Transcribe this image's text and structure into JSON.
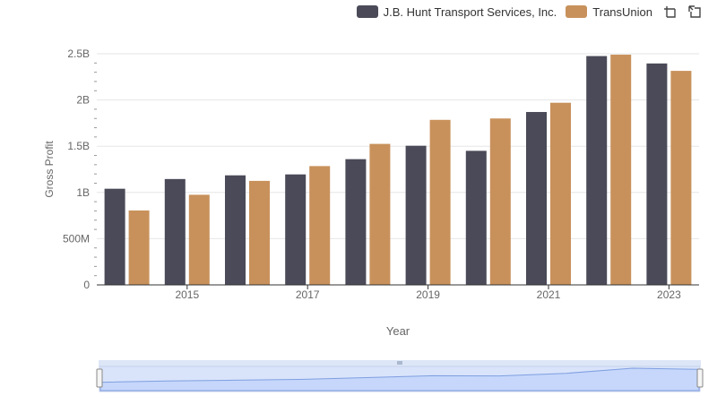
{
  "legend": [
    {
      "name": "J.B. Hunt Transport Services, Inc.",
      "color": "#4a4a58"
    },
    {
      "name": "TransUnion",
      "color": "#c8915b"
    }
  ],
  "toolbar": {
    "icons": [
      "zoom-select-icon",
      "zoom-reset-icon"
    ]
  },
  "chart_data": {
    "type": "bar",
    "x": [
      2014,
      2015,
      2016,
      2017,
      2018,
      2019,
      2020,
      2021,
      2022,
      2023
    ],
    "xticks": [
      "2015",
      "2017",
      "2019",
      "2021",
      "2023"
    ],
    "xlabel": "Year",
    "ylabel": "Gross Profit",
    "yticks": [
      "0",
      "500M",
      "1B",
      "1.5B",
      "2B",
      "2.5B"
    ],
    "ylim": [
      0,
      2600000000
    ],
    "grid": true,
    "legend_position": "top-right",
    "series": [
      {
        "name": "J.B. Hunt Transport Services, Inc.",
        "color": "#4a4a58",
        "values": [
          1040000000,
          1145000000,
          1185000000,
          1195000000,
          1360000000,
          1505000000,
          1450000000,
          1870000000,
          2475000000,
          2395000000
        ]
      },
      {
        "name": "TransUnion",
        "color": "#c8915b",
        "values": [
          805000000,
          975000000,
          1125000000,
          1285000000,
          1525000000,
          1785000000,
          1800000000,
          1970000000,
          2490000000,
          2315000000
        ]
      }
    ]
  }
}
